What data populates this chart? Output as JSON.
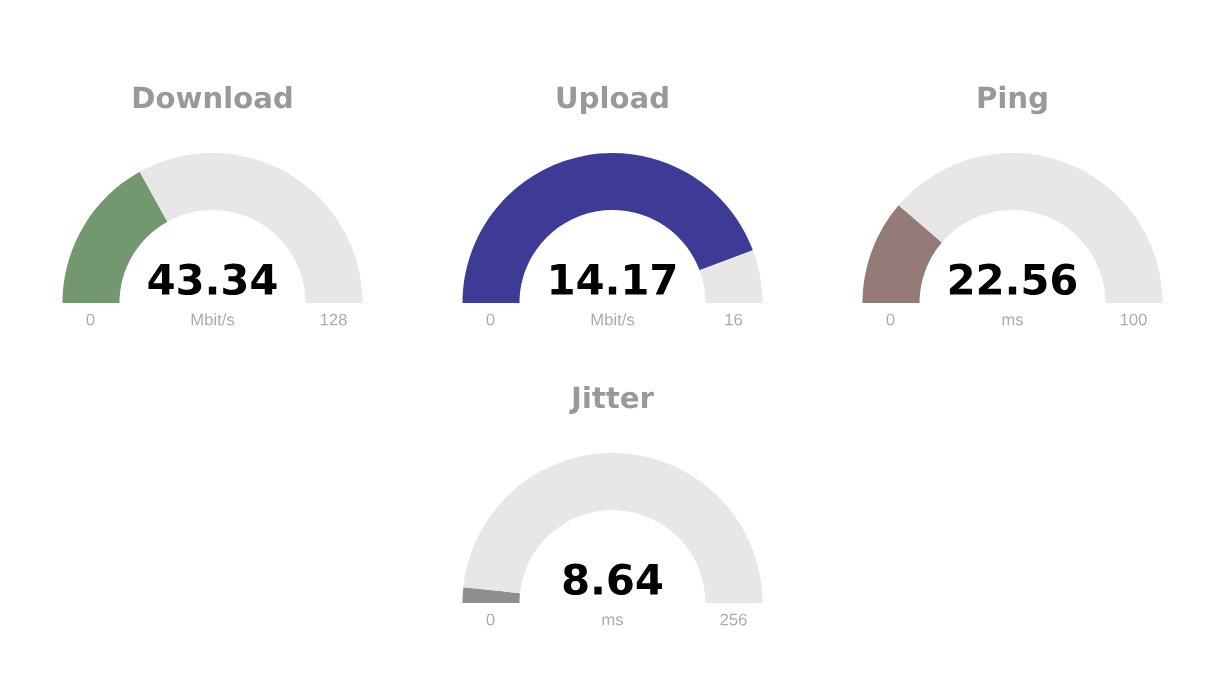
{
  "chart_data": [
    {
      "type": "donut",
      "title": "Download",
      "categories": [
        null,
        null
      ],
      "values": [
        33.86,
        66.14
      ],
      "colors": [
        "#73976f",
        "#e8e6e7"
      ],
      "annotations": [
        "43.34",
        "0",
        "Mbit/s",
        "128"
      ]
    },
    {
      "type": "donut",
      "title": "Upload",
      "categories": [
        null,
        null
      ],
      "values": [
        88.56,
        11.44
      ],
      "colors": [
        "#3d3b96",
        "#e8e6e7"
      ],
      "annotations": [
        "14.17",
        "0",
        "Mbit/s",
        "16"
      ]
    },
    {
      "type": "donut",
      "title": "Ping",
      "categories": [
        null,
        null
      ],
      "values": [
        22.56,
        77.44
      ],
      "colors": [
        "#957b78",
        "#e8e6e7"
      ],
      "annotations": [
        "22.56",
        "0",
        "ms",
        "100"
      ]
    },
    {
      "type": "donut",
      "title": "Jitter",
      "categories": [
        null,
        null
      ],
      "values": [
        3.375,
        96.625
      ],
      "colors": [
        "#8f8f8f",
        "#e8e6e7"
      ],
      "annotations": [
        "8.64",
        "0",
        "ms",
        "256"
      ]
    }
  ]
}
